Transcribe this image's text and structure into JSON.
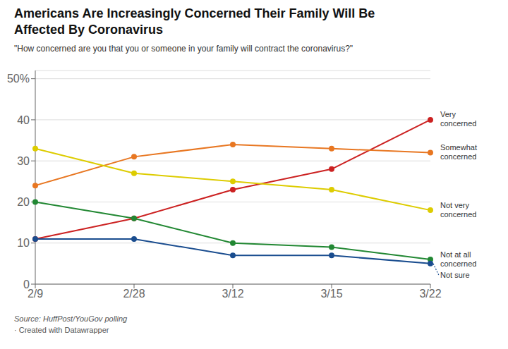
{
  "chart_data": {
    "type": "line",
    "title": "Americans Are Increasingly Concerned Their Family Will Be\nAffected By Coronavirus",
    "subtitle": "\"How concerned are you that you or someone in your family will contract the coronavirus?\"",
    "categories": [
      "2/9",
      "2/28",
      "3/12",
      "3/15",
      "3/22"
    ],
    "series": [
      {
        "name": "Very\nconcerned",
        "color": "#cc2222",
        "line_style": "solid",
        "values": [
          11,
          16,
          23,
          28,
          40
        ]
      },
      {
        "name": "Somewhat\nconcerned",
        "color": "#e87722",
        "line_style": "solid",
        "values": [
          24,
          31,
          34,
          33,
          32
        ]
      },
      {
        "name": "Not very\nconcerned",
        "color": "#ddcc00",
        "line_style": "solid",
        "values": [
          33,
          27,
          25,
          23,
          18
        ]
      },
      {
        "name": "Not at all\nconcerned",
        "color": "#228833",
        "line_style": "solid",
        "values": [
          20,
          16,
          10,
          9,
          6
        ]
      },
      {
        "name": "Not sure",
        "color": "#1a4d8f",
        "line_style": "solid",
        "values": [
          11,
          11,
          7,
          7,
          5
        ]
      }
    ],
    "ylim": [
      0,
      52
    ],
    "yticks": [
      0,
      10,
      20,
      30,
      40,
      {
        "value": 50,
        "label": "50%"
      }
    ],
    "grid": true,
    "marker": "circle",
    "annotations": [
      "Source: HuffPost/YouGov polling",
      "· Created with Datawrapper"
    ]
  }
}
